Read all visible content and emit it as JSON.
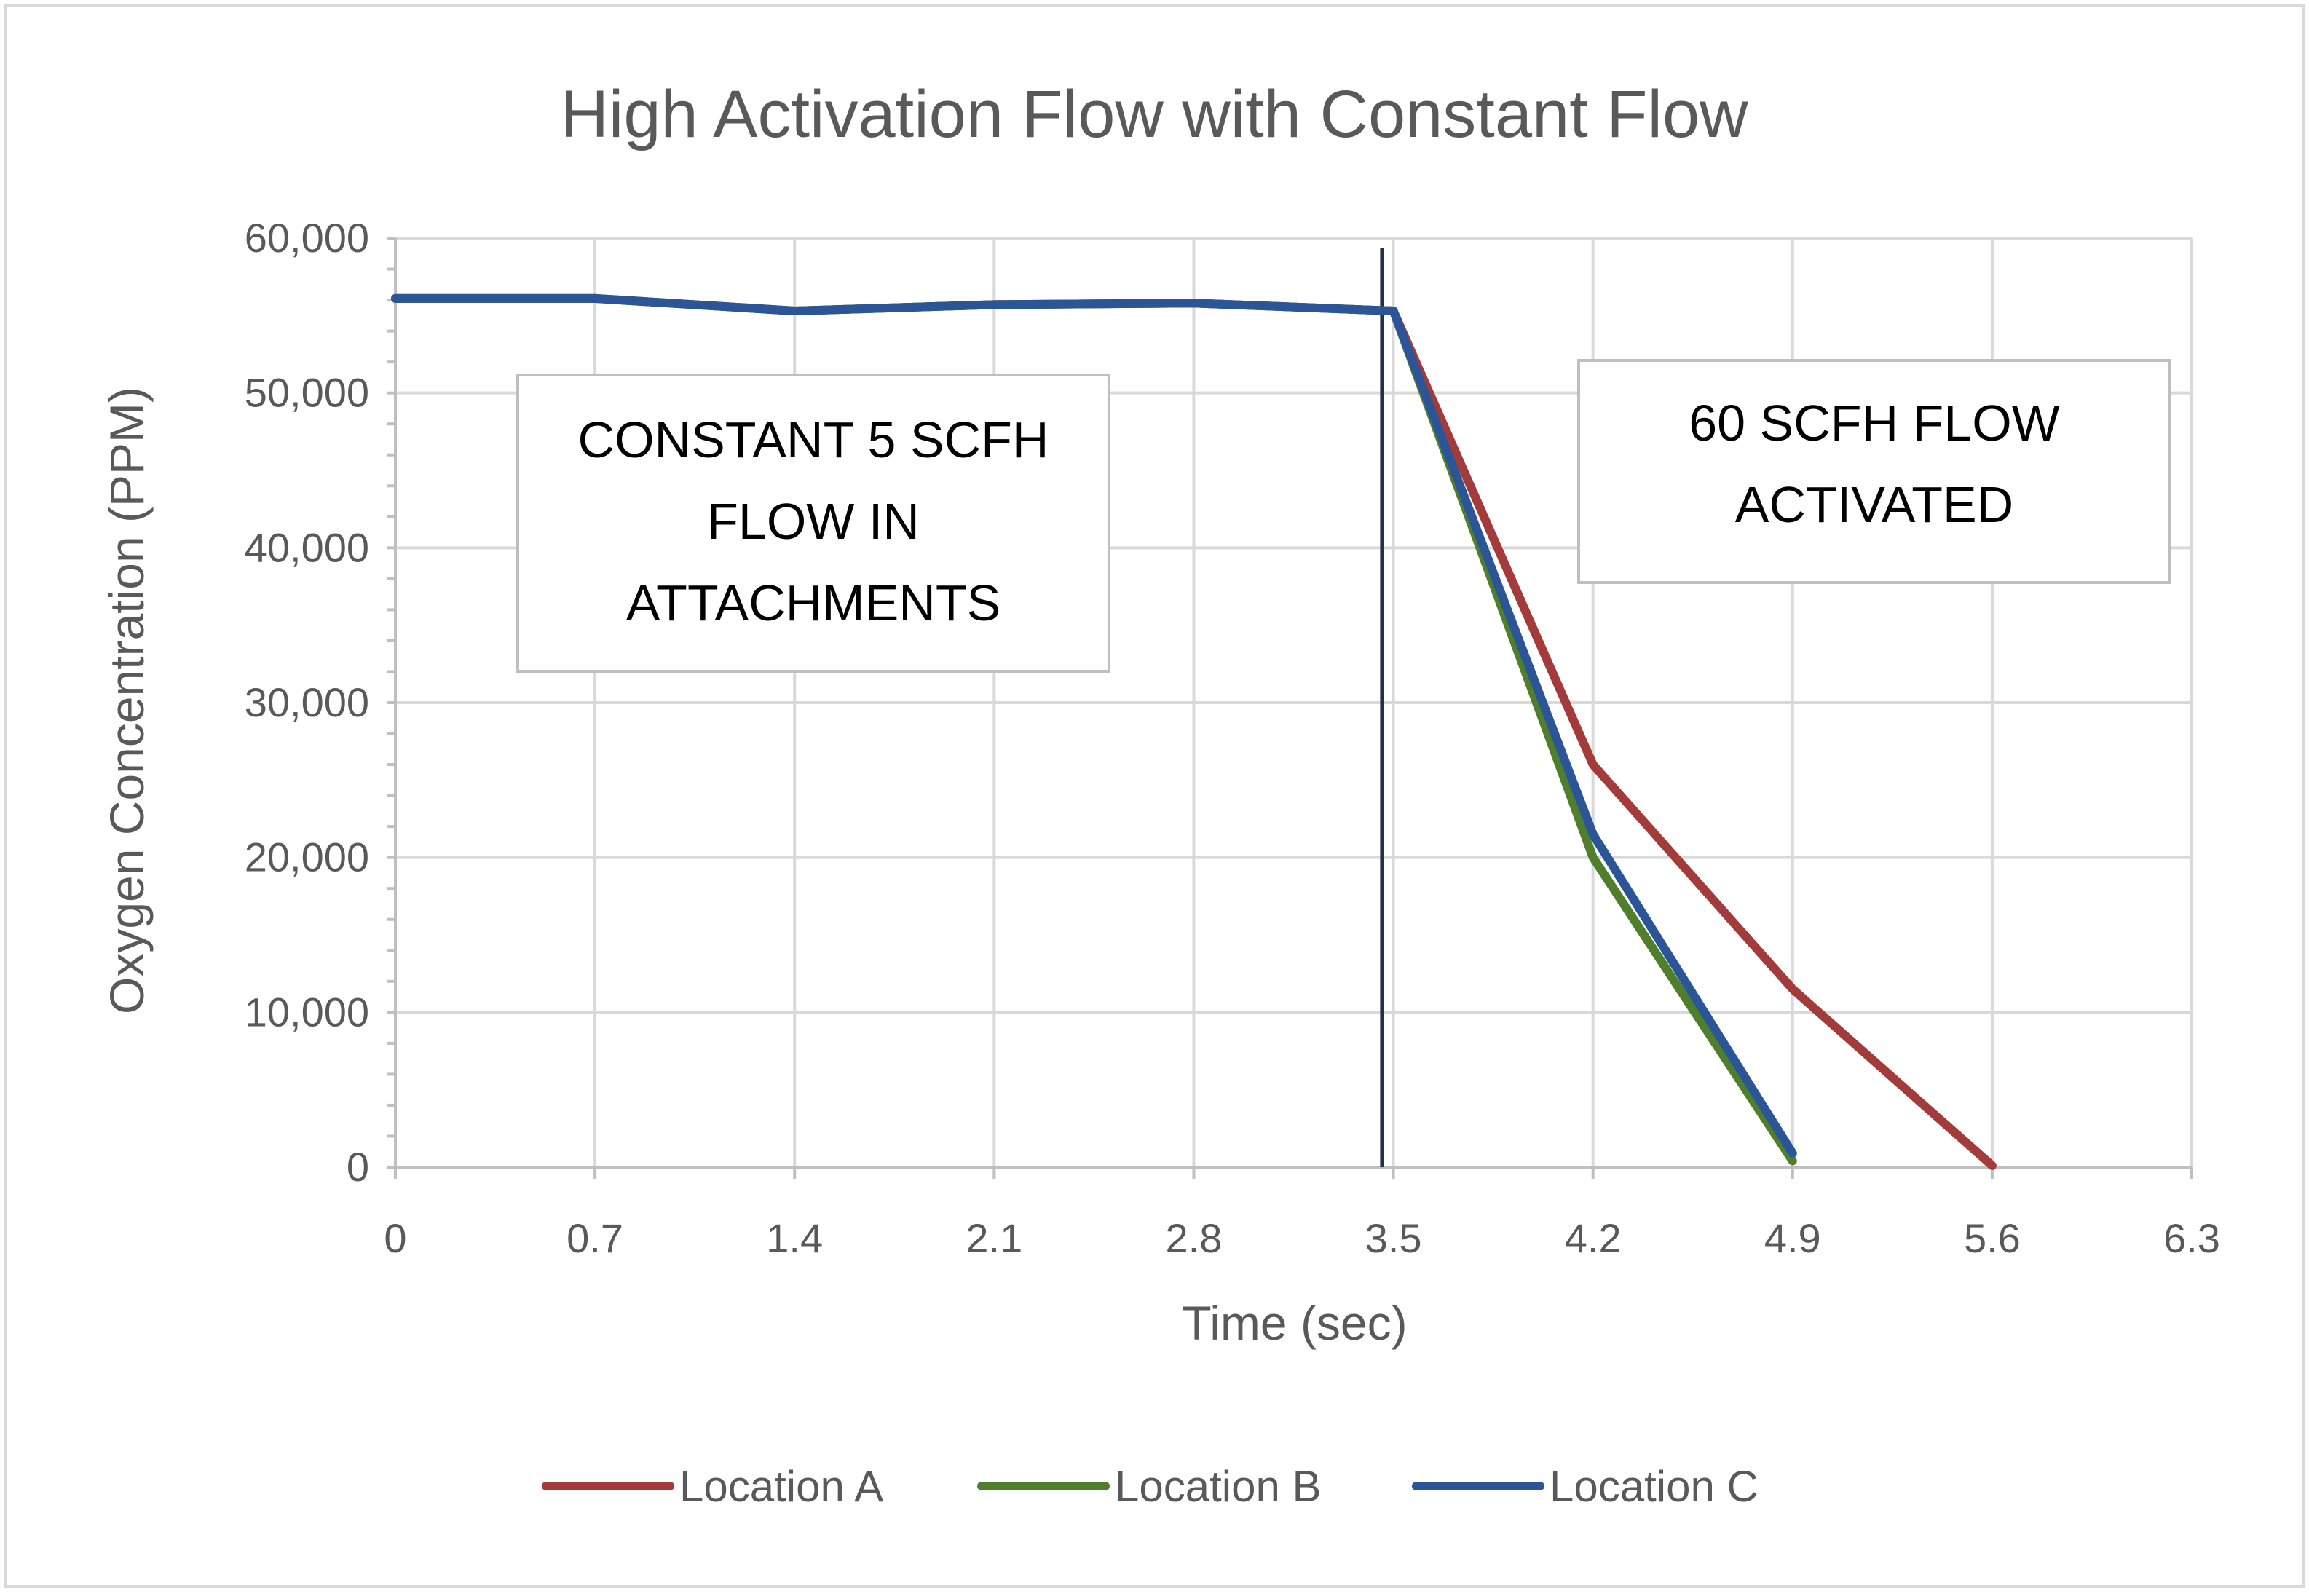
{
  "chart_data": {
    "type": "line",
    "title": "High Activation Flow with Constant Flow",
    "xlabel": "Time (sec)",
    "ylabel": "Oxygen Concentration (PPM)",
    "xlim": [
      0,
      6.3
    ],
    "ylim": [
      0,
      60000
    ],
    "x_ticks": [
      "0",
      "0.7",
      "1.4",
      "2.1",
      "2.8",
      "3.5",
      "4.2",
      "4.9",
      "5.6",
      "6.3"
    ],
    "y_ticks": [
      "0",
      "10,000",
      "20,000",
      "30,000",
      "40,000",
      "50,000",
      "60,000"
    ],
    "grid": true,
    "legend_position": "bottom",
    "series": [
      {
        "name": "Location A",
        "color": "#a33b3b",
        "x": [
          0,
          0.7,
          1.4,
          2.1,
          2.8,
          3.5,
          4.2,
          4.9,
          5.6
        ],
        "values": [
          56100,
          56100,
          55300,
          55700,
          55800,
          55300,
          26000,
          11500,
          100
        ]
      },
      {
        "name": "Location B",
        "color": "#4f7f2c",
        "x": [
          0,
          0.7,
          1.4,
          2.1,
          2.8,
          3.5,
          4.2,
          4.9
        ],
        "values": [
          56100,
          56100,
          55300,
          55700,
          55800,
          55300,
          20000,
          400
        ]
      },
      {
        "name": "Location C",
        "color": "#2b5597",
        "x": [
          0,
          0.7,
          1.4,
          2.1,
          2.8,
          3.5,
          4.2,
          4.9
        ],
        "values": [
          56100,
          56100,
          55300,
          55700,
          55800,
          55300,
          21500,
          900
        ]
      }
    ],
    "vertical_marker": {
      "x": 3.46,
      "color": "#1f3347"
    },
    "annotations": [
      {
        "lines": [
          "CONSTANT 5 SCFH",
          "FLOW IN",
          "ATTACHMENTS"
        ],
        "position": "left"
      },
      {
        "lines": [
          "60 SCFH FLOW",
          "ACTIVATED"
        ],
        "position": "right"
      }
    ]
  }
}
